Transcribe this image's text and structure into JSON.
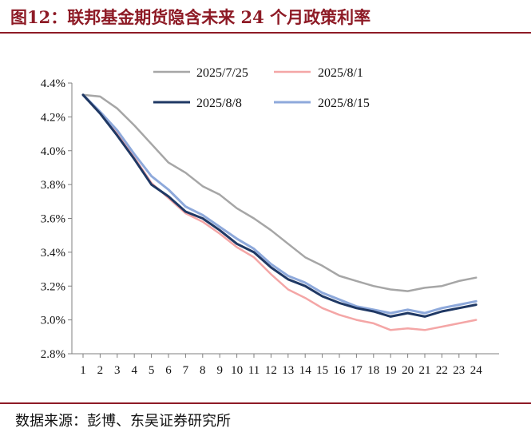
{
  "title": "图12：联邦基金期货隐含未来 24 个月政策利率",
  "source": "数据来源：彭博、东吴证券研究所",
  "chart_data": {
    "type": "line",
    "x": [
      1,
      2,
      3,
      4,
      5,
      6,
      7,
      8,
      9,
      10,
      11,
      12,
      13,
      14,
      15,
      16,
      17,
      18,
      19,
      20,
      21,
      22,
      23,
      24
    ],
    "x_tick_labels": [
      "1",
      "2",
      "3",
      "4",
      "5",
      "6",
      "7",
      "8",
      "9",
      "10",
      "11",
      "12",
      "13",
      "14",
      "15",
      "16",
      "17",
      "18",
      "19",
      "20",
      "21",
      "22",
      "23",
      "24"
    ],
    "ylim": [
      2.8,
      4.4
    ],
    "y_ticks": [
      2.8,
      3.0,
      3.2,
      3.4,
      3.6,
      3.8,
      4.0,
      4.2,
      4.4
    ],
    "y_tick_labels": [
      "2.8%",
      "3.0%",
      "3.2%",
      "3.4%",
      "3.6%",
      "3.8%",
      "4.0%",
      "4.2%",
      "4.4%"
    ],
    "grid": false,
    "legend_position": "top-center",
    "series": [
      {
        "name": "2025/7/25",
        "color": "#a6a6a6",
        "line_width": 2.5,
        "values": [
          4.33,
          4.32,
          4.25,
          4.15,
          4.04,
          3.93,
          3.87,
          3.79,
          3.74,
          3.66,
          3.6,
          3.53,
          3.45,
          3.37,
          3.32,
          3.26,
          3.23,
          3.2,
          3.18,
          3.17,
          3.19,
          3.2,
          3.23,
          3.25
        ]
      },
      {
        "name": "2025/8/1",
        "color": "#f4a6a6",
        "line_width": 2.5,
        "values": [
          4.33,
          4.22,
          4.1,
          3.96,
          3.81,
          3.72,
          3.63,
          3.58,
          3.51,
          3.43,
          3.37,
          3.27,
          3.18,
          3.13,
          3.07,
          3.03,
          3.0,
          2.98,
          2.94,
          2.95,
          2.94,
          2.96,
          2.98,
          3.0
        ]
      },
      {
        "name": "2025/8/8",
        "color": "#1f3864",
        "line_width": 3,
        "values": [
          4.33,
          4.22,
          4.09,
          3.95,
          3.8,
          3.73,
          3.64,
          3.6,
          3.53,
          3.45,
          3.4,
          3.31,
          3.24,
          3.2,
          3.14,
          3.1,
          3.07,
          3.05,
          3.02,
          3.04,
          3.02,
          3.05,
          3.07,
          3.09
        ]
      },
      {
        "name": "2025/8/15",
        "color": "#8ea9db",
        "line_width": 3,
        "values": [
          4.33,
          4.23,
          4.12,
          3.98,
          3.85,
          3.77,
          3.67,
          3.62,
          3.55,
          3.48,
          3.42,
          3.33,
          3.26,
          3.22,
          3.16,
          3.12,
          3.08,
          3.06,
          3.04,
          3.06,
          3.04,
          3.07,
          3.09,
          3.11
        ]
      }
    ]
  }
}
